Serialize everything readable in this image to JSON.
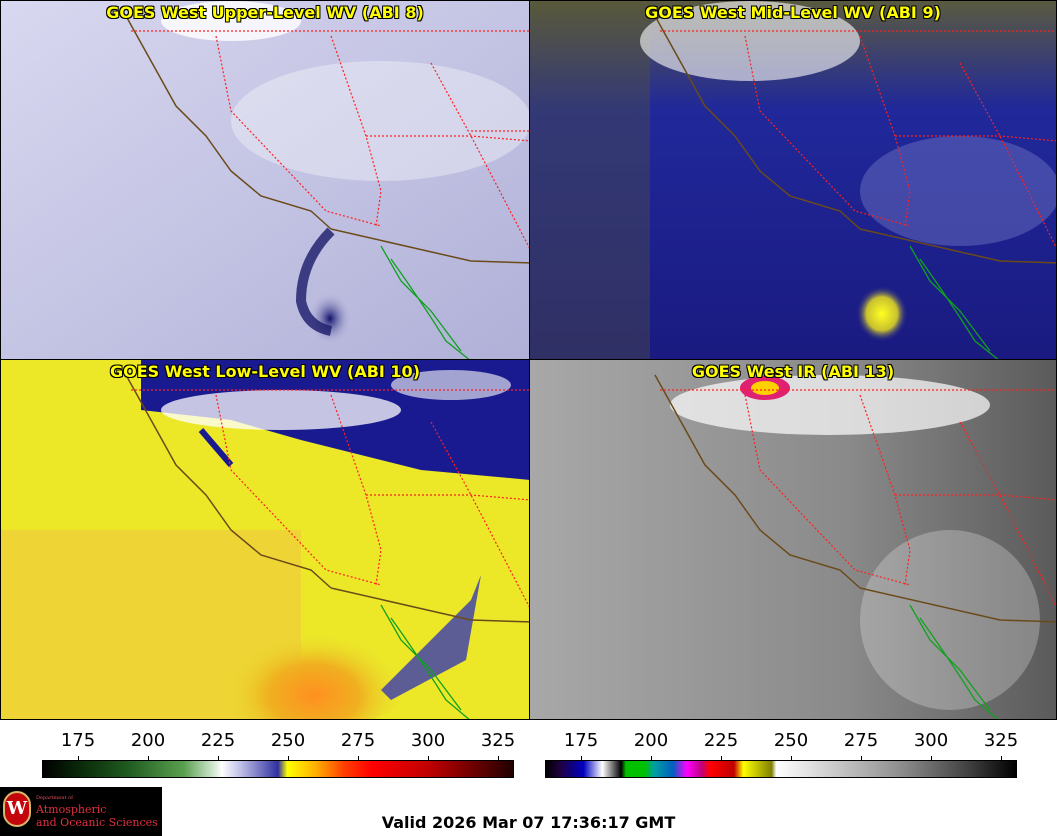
{
  "panels": [
    {
      "title": "GOES West Upper-Level WV (ABI 8)"
    },
    {
      "title": "GOES West Mid-Level WV (ABI 9)"
    },
    {
      "title": "GOES West Low-Level WV (ABI 10)"
    },
    {
      "title": "GOES West IR (ABI 13)"
    }
  ],
  "colorbar_wv": {
    "ticks": [
      "175",
      "200",
      "225",
      "250",
      "275",
      "300",
      "325"
    ]
  },
  "colorbar_ir": {
    "ticks": [
      "175",
      "200",
      "225",
      "250",
      "275",
      "300",
      "325"
    ]
  },
  "footer": {
    "valid_text": "Valid 2026 Mar 07 17:36:17 GMT"
  },
  "logo": {
    "line1": "Department of",
    "line2": "Atmospheric",
    "line3": "and Oceanic Sciences",
    "seal_letter": "W"
  },
  "colors": {
    "title_text": "#ffff00",
    "state_borders": "#ff2020",
    "coastline": "#6b4a1a",
    "baja_coast": "#10a020"
  }
}
